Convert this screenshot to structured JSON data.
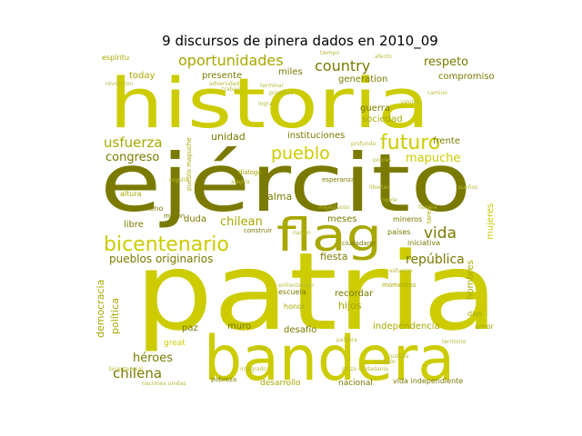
{
  "chart_data": {
    "type": "wordcloud",
    "title": "9 discursos de pinera dados en 2010_09",
    "palette": {
      "dark": "#7a7a00",
      "mid": "#a8a800",
      "light": "#cccc00",
      "pale": "#b9b93a"
    },
    "words": [
      {
        "text": "patria",
        "weight": 100,
        "color": "light"
      },
      {
        "text": "ejército",
        "weight": 96,
        "color": "dark"
      },
      {
        "text": "historia",
        "weight": 88,
        "color": "light"
      },
      {
        "text": "bandera",
        "weight": 85,
        "color": "light"
      },
      {
        "text": "flag",
        "weight": 52,
        "color": "mid"
      },
      {
        "text": "bicentenario",
        "weight": 24,
        "color": "light"
      },
      {
        "text": "futuro",
        "weight": 20,
        "color": "light"
      },
      {
        "text": "pueblo",
        "weight": 19,
        "color": "light"
      },
      {
        "text": "vida",
        "weight": 17,
        "color": "dark"
      },
      {
        "text": "oportunidades",
        "weight": 16,
        "color": "mid"
      },
      {
        "text": "country",
        "weight": 16,
        "color": "dark"
      },
      {
        "text": "usfuerza",
        "weight": 15,
        "color": "mid"
      },
      {
        "text": "chilena",
        "weight": 15,
        "color": "dark"
      },
      {
        "text": "república",
        "weight": 14,
        "color": "dark"
      },
      {
        "text": "respeto",
        "weight": 13,
        "color": "dark"
      },
      {
        "text": "congreso",
        "weight": 13,
        "color": "dark"
      },
      {
        "text": "chilean",
        "weight": 13,
        "color": "mid"
      },
      {
        "text": "mapuche",
        "weight": 13,
        "color": "light"
      },
      {
        "text": "héroes",
        "weight": 13,
        "color": "dark"
      },
      {
        "text": "pueblos originarios",
        "weight": 12,
        "color": "dark"
      },
      {
        "text": "alma",
        "weight": 11,
        "color": "dark"
      },
      {
        "text": "unidad",
        "weight": 11,
        "color": "dark"
      },
      {
        "text": "hijos",
        "weight": 11,
        "color": "mid"
      },
      {
        "text": "fiesta",
        "weight": 11,
        "color": "dark"
      },
      {
        "text": "democracia",
        "weight": 11,
        "color": "mid"
      },
      {
        "text": "política",
        "weight": 11,
        "color": "mid"
      },
      {
        "text": "compromiso",
        "weight": 10,
        "color": "dark"
      },
      {
        "text": "today",
        "weight": 10,
        "color": "mid"
      },
      {
        "text": "presente",
        "weight": 10,
        "color": "dark"
      },
      {
        "text": "miles",
        "weight": 10,
        "color": "dark"
      },
      {
        "text": "generation",
        "weight": 10,
        "color": "dark"
      },
      {
        "text": "guerra",
        "weight": 10,
        "color": "dark"
      },
      {
        "text": "sociedad",
        "weight": 10,
        "color": "mid"
      },
      {
        "text": "instituciones",
        "weight": 10,
        "color": "dark"
      },
      {
        "text": "frente",
        "weight": 10,
        "color": "dark"
      },
      {
        "text": "meses",
        "weight": 10,
        "color": "dark"
      },
      {
        "text": "libre",
        "weight": 10,
        "color": "dark"
      },
      {
        "text": "duda",
        "weight": 10,
        "color": "dark"
      },
      {
        "text": "recordar",
        "weight": 10,
        "color": "dark"
      },
      {
        "text": "independencia",
        "weight": 10,
        "color": "mid"
      },
      {
        "text": "desafío",
        "weight": 10,
        "color": "dark"
      },
      {
        "text": "muro",
        "weight": 10,
        "color": "dark"
      },
      {
        "text": "paz",
        "weight": 10,
        "color": "dark"
      },
      {
        "text": "hombres",
        "weight": 10,
        "color": "mid"
      },
      {
        "text": "mujeres",
        "weight": 10,
        "color": "light"
      },
      {
        "text": "desarrollo",
        "weight": 9,
        "color": "mid"
      },
      {
        "text": "great",
        "weight": 9,
        "color": "light"
      },
      {
        "text": "nacional",
        "weight": 9,
        "color": "dark"
      },
      {
        "text": "vida independiente",
        "weight": 8,
        "color": "dark"
      },
      {
        "text": "espíritu",
        "weight": 8,
        "color": "mid"
      },
      {
        "text": "escuela",
        "weight": 8,
        "color": "dark"
      },
      {
        "text": "altura",
        "weight": 8,
        "color": "mid"
      },
      {
        "text": "lleno",
        "weight": 8,
        "color": "dark"
      },
      {
        "text": "ciudadano",
        "weight": 7,
        "color": "dark"
      },
      {
        "text": "honor",
        "weight": 8,
        "color": "mid"
      },
      {
        "text": "iniciativa",
        "weight": 8,
        "color": "dark"
      },
      {
        "text": "mineros",
        "weight": 8,
        "color": "dark"
      },
      {
        "text": "países",
        "weight": 8,
        "color": "dark"
      },
      {
        "text": "dios",
        "weight": 8,
        "color": "mid"
      },
      {
        "text": "amor",
        "weight": 8,
        "color": "mid"
      },
      {
        "text": "million",
        "weight": 7,
        "color": "dark"
      },
      {
        "text": "construir",
        "weight": 7,
        "color": "dark"
      },
      {
        "text": "pobreza",
        "weight": 7,
        "color": "dark"
      },
      {
        "text": "esperanza",
        "weight": 7,
        "color": "dark"
      },
      {
        "text": "momentos",
        "weight": 7,
        "color": "mid"
      },
      {
        "text": "diálogo",
        "weight": 7,
        "color": "mid"
      },
      {
        "text": "pueblo mapuche",
        "weight": 7,
        "color": "mid"
      },
      {
        "text": "tarea",
        "weight": 7,
        "color": "mid"
      },
      {
        "text": "naciones unidas",
        "weight": 6,
        "color": "pale"
      },
      {
        "text": "territorio",
        "weight": 6,
        "color": "pale"
      },
      {
        "text": "alegría",
        "weight": 6,
        "color": "pale"
      },
      {
        "text": "progreso",
        "weight": 6,
        "color": "pale"
      },
      {
        "text": "trabajo",
        "weight": 6,
        "color": "pale"
      },
      {
        "text": "nación",
        "weight": 6,
        "color": "pale"
      },
      {
        "text": "libertad",
        "weight": 6,
        "color": "pale"
      },
      {
        "text": "justicia",
        "weight": 6,
        "color": "pale"
      },
      {
        "text": "camino",
        "weight": 6,
        "color": "pale"
      },
      {
        "text": "esfuerzo",
        "weight": 6,
        "color": "pale"
      },
      {
        "text": "mundo",
        "weight": 6,
        "color": "pale"
      },
      {
        "text": "familia",
        "weight": 6,
        "color": "pale"
      },
      {
        "text": "noble",
        "weight": 6,
        "color": "pale"
      },
      {
        "text": "valores",
        "weight": 6,
        "color": "pale"
      },
      {
        "text": "tiempo",
        "weight": 6,
        "color": "pale"
      },
      {
        "text": "afecto",
        "weight": 6,
        "color": "pale"
      },
      {
        "text": "sueños",
        "weight": 6,
        "color": "pale"
      },
      {
        "text": "plaza ciudadanía",
        "weight": 6,
        "color": "pale"
      },
      {
        "text": "profunda",
        "weight": 6,
        "color": "pale"
      },
      {
        "text": "integrado",
        "weight": 6,
        "color": "pale"
      },
      {
        "text": "enfrentar",
        "weight": 6,
        "color": "pale"
      },
      {
        "text": "revolution",
        "weight": 6,
        "color": "pale"
      },
      {
        "text": "adversidad",
        "weight": 6,
        "color": "pale"
      },
      {
        "text": "terminar",
        "weight": 6,
        "color": "pale"
      },
      {
        "text": "lograr",
        "weight": 6,
        "color": "pale"
      },
      {
        "text": "pobres",
        "weight": 6,
        "color": "pale"
      },
      {
        "text": "bicentennial",
        "weight": 6,
        "color": "pale"
      },
      {
        "text": "majestuoso",
        "weight": 6,
        "color": "pale"
      },
      {
        "text": "orgullo",
        "weight": 6,
        "color": "pale"
      },
      {
        "text": "palabra",
        "weight": 6,
        "color": "pale"
      },
      {
        "text": "lugar",
        "weight": 6,
        "color": "pale"
      },
      {
        "text": "corazón",
        "weight": 6,
        "color": "pale"
      }
    ]
  }
}
